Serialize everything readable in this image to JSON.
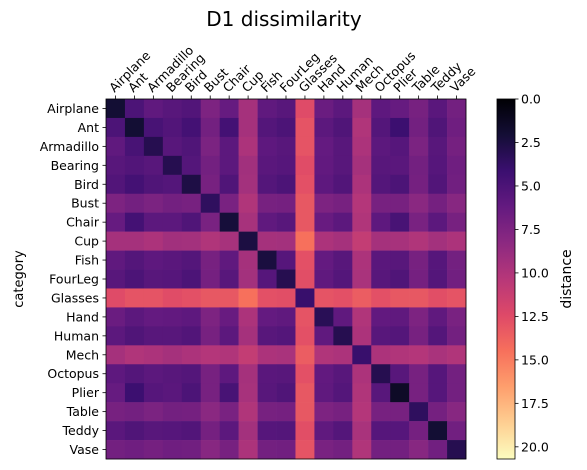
{
  "chart_data": {
    "type": "heatmap",
    "title": "D1 dissimilarity",
    "xlabel": "",
    "ylabel": "category",
    "categories": [
      "Airplane",
      "Ant",
      "Armadillo",
      "Bearing",
      "Bird",
      "Bust",
      "Chair",
      "Cup",
      "Fish",
      "FourLeg",
      "Glasses",
      "Hand",
      "Human",
      "Mech",
      "Octopus",
      "Plier",
      "Table",
      "Teddy",
      "Vase"
    ],
    "x_tick_position": "top",
    "x_tick_rotation": 45,
    "colormap": "magma_r",
    "color_range": [
      0.0,
      20.7
    ],
    "colorbar": {
      "label": "distance",
      "ticks": [
        "0.0",
        "2.5",
        "5.0",
        "7.5",
        "10.0",
        "12.5",
        "15.0",
        "17.5",
        "20.0"
      ]
    },
    "category_mean_distance": [
      [
        2.0,
        5.0,
        6.0,
        5.6,
        5.3,
        7.5,
        6.3,
        9.5,
        6.0,
        5.6,
        12.5,
        6.5,
        5.8,
        9.5,
        5.9,
        6.3,
        7.2,
        5.7,
        7.0
      ],
      [
        5.0,
        2.0,
        4.8,
        5.3,
        4.6,
        7.0,
        4.6,
        9.5,
        5.4,
        5.0,
        13.0,
        5.8,
        5.2,
        10.0,
        5.4,
        4.2,
        7.0,
        5.2,
        6.8
      ],
      [
        6.0,
        4.8,
        3.0,
        5.6,
        5.2,
        7.4,
        5.8,
        9.8,
        5.9,
        5.6,
        13.0,
        6.2,
        5.6,
        9.8,
        5.8,
        5.5,
        7.4,
        5.6,
        7.1
      ],
      [
        5.6,
        5.3,
        5.6,
        3.0,
        5.4,
        7.0,
        5.8,
        9.3,
        5.7,
        5.5,
        12.6,
        6.1,
        5.6,
        9.5,
        5.6,
        5.7,
        7.0,
        5.5,
        6.8
      ],
      [
        5.3,
        4.6,
        5.2,
        5.4,
        2.6,
        7.2,
        5.2,
        9.4,
        5.4,
        5.0,
        12.8,
        5.9,
        5.3,
        9.8,
        5.4,
        5.0,
        7.1,
        5.3,
        6.9
      ],
      [
        7.5,
        7.0,
        7.4,
        7.0,
        7.2,
        3.5,
        7.3,
        10.0,
        7.2,
        7.1,
        13.2,
        7.5,
        7.2,
        10.2,
        7.2,
        7.2,
        8.2,
        7.1,
        8.0
      ],
      [
        6.3,
        4.6,
        5.8,
        5.8,
        5.2,
        7.3,
        2.2,
        9.6,
        6.0,
        5.6,
        13.2,
        6.4,
        5.8,
        10.0,
        5.9,
        4.8,
        7.3,
        5.8,
        7.2
      ],
      [
        9.5,
        9.5,
        9.8,
        9.3,
        9.4,
        10.0,
        9.6,
        2.5,
        9.5,
        9.4,
        14.5,
        9.8,
        9.5,
        11.0,
        9.5,
        9.6,
        10.0,
        9.4,
        9.8
      ],
      [
        6.0,
        5.4,
        5.9,
        5.7,
        5.4,
        7.2,
        6.0,
        9.5,
        2.4,
        5.5,
        12.8,
        6.2,
        5.6,
        9.8,
        5.7,
        5.6,
        7.2,
        5.5,
        7.0
      ],
      [
        5.6,
        5.0,
        5.6,
        5.5,
        5.0,
        7.1,
        5.6,
        9.4,
        5.5,
        3.0,
        12.7,
        6.0,
        5.4,
        9.7,
        5.6,
        5.2,
        7.1,
        5.4,
        6.9
      ],
      [
        12.5,
        13.0,
        13.0,
        12.6,
        12.8,
        13.2,
        13.2,
        14.5,
        12.8,
        12.7,
        4.0,
        13.0,
        12.8,
        13.5,
        12.8,
        13.2,
        13.2,
        12.7,
        13.0
      ],
      [
        6.5,
        5.8,
        6.2,
        6.1,
        5.9,
        7.5,
        6.4,
        9.8,
        6.2,
        6.0,
        13.0,
        3.2,
        6.0,
        10.0,
        6.1,
        6.0,
        7.5,
        6.0,
        7.3
      ],
      [
        5.8,
        5.2,
        5.6,
        5.6,
        5.3,
        7.2,
        5.8,
        9.5,
        5.6,
        5.4,
        12.8,
        6.0,
        3.0,
        9.8,
        5.6,
        5.4,
        7.2,
        5.4,
        7.0
      ],
      [
        9.5,
        10.0,
        9.8,
        9.5,
        9.8,
        10.2,
        10.0,
        11.0,
        9.8,
        9.7,
        13.5,
        10.0,
        9.8,
        4.0,
        9.8,
        10.0,
        10.2,
        9.7,
        10.0
      ],
      [
        5.9,
        5.4,
        5.8,
        5.6,
        5.4,
        7.2,
        5.9,
        9.5,
        5.7,
        5.6,
        12.8,
        6.1,
        5.6,
        9.8,
        3.0,
        5.6,
        7.2,
        5.5,
        7.0
      ],
      [
        6.3,
        4.2,
        5.5,
        5.7,
        5.0,
        7.2,
        4.8,
        9.6,
        5.6,
        5.2,
        13.2,
        6.0,
        5.4,
        10.0,
        5.6,
        1.5,
        7.2,
        5.5,
        7.0
      ],
      [
        7.2,
        7.0,
        7.4,
        7.0,
        7.1,
        8.2,
        7.3,
        10.0,
        7.2,
        7.1,
        13.2,
        7.5,
        7.2,
        10.2,
        7.2,
        7.2,
        3.5,
        7.1,
        8.0
      ],
      [
        5.7,
        5.2,
        5.6,
        5.5,
        5.3,
        7.1,
        5.8,
        9.4,
        5.5,
        5.4,
        12.7,
        6.0,
        5.4,
        9.7,
        5.5,
        5.5,
        7.1,
        2.0,
        6.9
      ],
      [
        7.0,
        6.8,
        7.1,
        6.8,
        6.9,
        8.0,
        7.2,
        9.8,
        7.0,
        6.9,
        13.0,
        7.3,
        7.0,
        10.0,
        7.0,
        7.0,
        8.0,
        6.9,
        3.0
      ]
    ]
  }
}
